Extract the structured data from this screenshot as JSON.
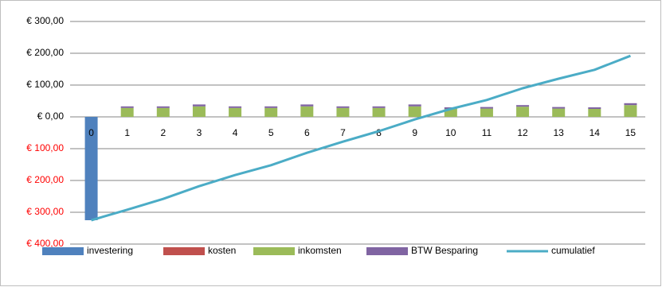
{
  "chart_data": {
    "type": "bar",
    "stacked": true,
    "categories": [
      "0",
      "1",
      "2",
      "3",
      "4",
      "5",
      "6",
      "7",
      "8",
      "9",
      "10",
      "11",
      "12",
      "13",
      "14",
      "15"
    ],
    "series": [
      {
        "name": "investering",
        "type": "bar",
        "color": "#4f81bd",
        "values": [
          -325,
          0,
          0,
          0,
          0,
          0,
          0,
          0,
          0,
          0,
          0,
          0,
          0,
          0,
          0,
          0
        ]
      },
      {
        "name": "kosten",
        "type": "bar",
        "color": "#c0504d",
        "values": [
          0,
          0,
          0,
          0,
          0,
          0,
          0,
          0,
          0,
          0,
          0,
          0,
          0,
          0,
          0,
          0
        ]
      },
      {
        "name": "inkomsten",
        "type": "bar",
        "color": "#9bbb59",
        "values": [
          0,
          28,
          28,
          33,
          28,
          28,
          33,
          28,
          28,
          33,
          25,
          26,
          32,
          26,
          25,
          37
        ]
      },
      {
        "name": "BTW Besparing",
        "type": "bar",
        "color": "#8064a2",
        "values": [
          0,
          5,
          5,
          6,
          5,
          5,
          6,
          5,
          5,
          6,
          5,
          5,
          5,
          5,
          5,
          6
        ]
      },
      {
        "name": "cumulatief",
        "type": "line",
        "color": "#4bacc6",
        "values": [
          -325,
          -292,
          -258,
          -218,
          -183,
          -152,
          -113,
          -78,
          -45,
          -8,
          25,
          53,
          90,
          120,
          148,
          192
        ]
      }
    ],
    "ylim": [
      -400,
      300
    ],
    "yticks": [
      {
        "value": -400,
        "label": "€ 400,00"
      },
      {
        "value": -300,
        "label": "€ 300,00"
      },
      {
        "value": -200,
        "label": "€ 200,00"
      },
      {
        "value": -100,
        "label": "€ 100,00"
      },
      {
        "value": 0,
        "label": "€ 0,00"
      },
      {
        "value": 100,
        "label": "€ 100,00"
      },
      {
        "value": 200,
        "label": "€ 200,00"
      },
      {
        "value": 300,
        "label": "€ 300,00"
      }
    ],
    "negative_tick_color": "#ff0000",
    "grid": true,
    "legend": "bottom"
  }
}
